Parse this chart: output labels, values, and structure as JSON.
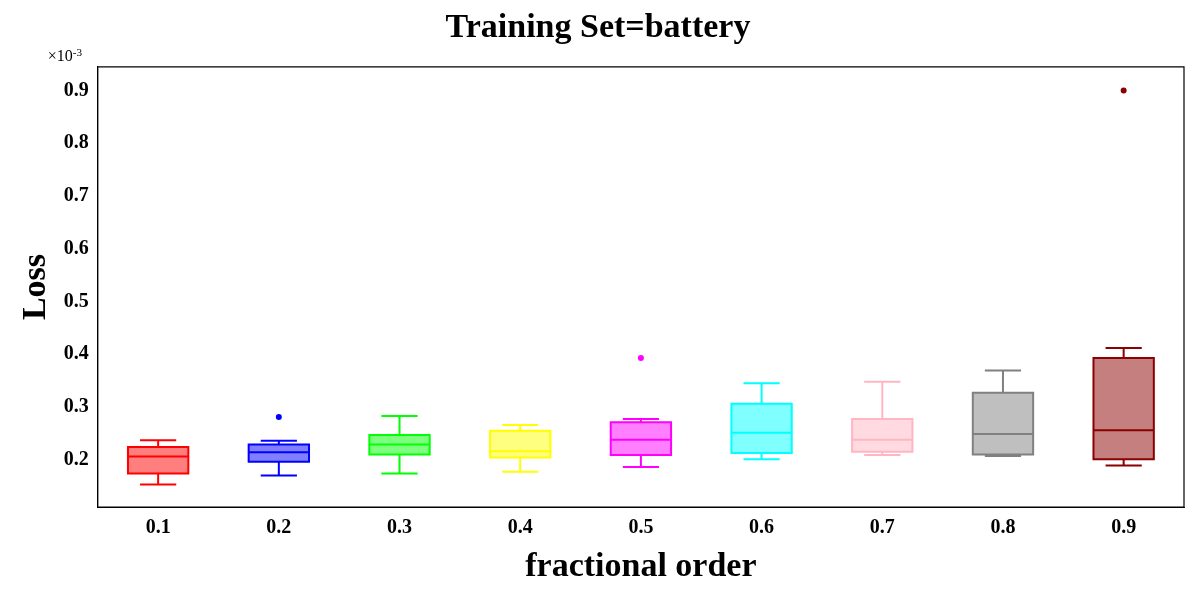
{
  "chart_data": {
    "type": "box",
    "title": "Training Set=battery",
    "xlabel": "fractional order",
    "ylabel": "Loss",
    "annotations": [
      "×10$^{-3}$"
    ],
    "categories": [
      "0.1",
      "0.2",
      "0.3",
      "0.4",
      "0.5",
      "0.6",
      "0.7",
      "0.8",
      "0.9"
    ],
    "colors": [
      "#ff0000",
      "#0000ff",
      "#00ff00",
      "#ffff00",
      "#ff00ff",
      "#00ffff",
      "#ffb6c1",
      "#808080",
      "#8b0000"
    ],
    "boxes": [
      {
        "low": 0.153,
        "q1": 0.174,
        "median": 0.206,
        "q3": 0.224,
        "high": 0.237
      },
      {
        "low": 0.17,
        "q1": 0.196,
        "median": 0.214,
        "q3": 0.229,
        "high": 0.236,
        "outliers": [
          0.281
        ]
      },
      {
        "low": 0.174,
        "q1": 0.21,
        "median": 0.229,
        "q3": 0.247,
        "high": 0.283
      },
      {
        "low": 0.177,
        "q1": 0.204,
        "median": 0.216,
        "q3": 0.255,
        "high": 0.266
      },
      {
        "low": 0.186,
        "q1": 0.209,
        "median": 0.238,
        "q3": 0.271,
        "high": 0.277,
        "outliers": [
          0.393
        ]
      },
      {
        "low": 0.201,
        "q1": 0.213,
        "median": 0.251,
        "q3": 0.306,
        "high": 0.345
      },
      {
        "low": 0.209,
        "q1": 0.215,
        "median": 0.238,
        "q3": 0.277,
        "high": 0.348
      },
      {
        "low": 0.207,
        "q1": 0.21,
        "median": 0.249,
        "q3": 0.327,
        "high": 0.369
      },
      {
        "low": 0.189,
        "q1": 0.201,
        "median": 0.256,
        "q3": 0.393,
        "high": 0.412,
        "outliers": [
          0.9
        ]
      }
    ],
    "ylim": [
      0.11,
      0.945
    ],
    "yticks": [
      0.2,
      0.3,
      0.4,
      0.5,
      0.6,
      0.7,
      0.8,
      0.9
    ],
    "grid": false,
    "legend": false
  }
}
